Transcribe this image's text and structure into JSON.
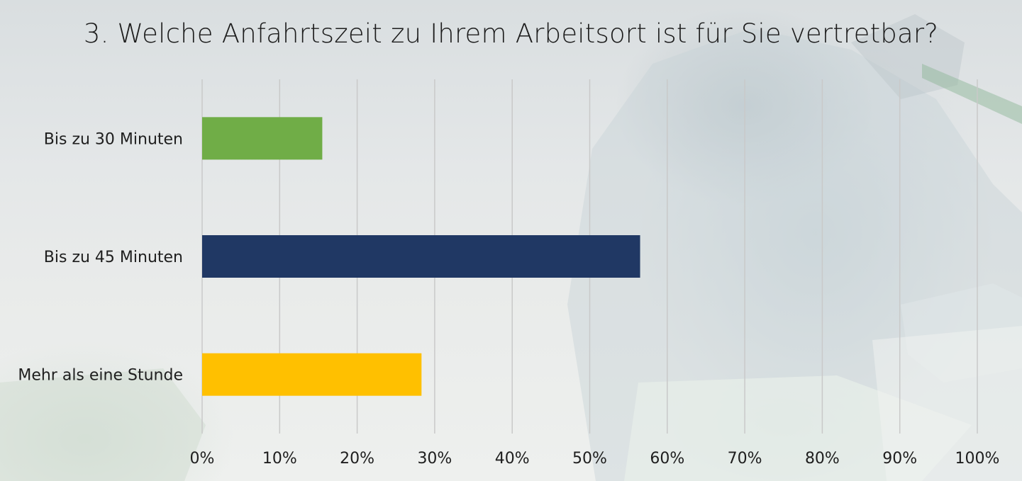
{
  "chart_data": {
    "type": "bar",
    "orientation": "horizontal",
    "title": "3. Welche Anfahrtszeit zu Ihrem Arbeitsort ist für Sie vertretbar?",
    "categories": [
      "Bis zu 30 Minuten",
      "Bis zu 45 Minuten",
      "Mehr als eine Stunde"
    ],
    "values": [
      0.155,
      0.565,
      0.283
    ],
    "colors": [
      "#70ad47",
      "#203864",
      "#ffc000"
    ],
    "xlim": [
      0,
      1
    ],
    "x_ticks": [
      0,
      0.1,
      0.2,
      0.3,
      0.4,
      0.5,
      0.6,
      0.7,
      0.8,
      0.9,
      1.0
    ],
    "x_tick_labels": [
      "0%",
      "10%",
      "20%",
      "30%",
      "40%",
      "50%",
      "60%",
      "70%",
      "80%",
      "90%",
      "100%"
    ],
    "grid": "vertical",
    "legend": "none",
    "xlabel": "",
    "ylabel": ""
  }
}
